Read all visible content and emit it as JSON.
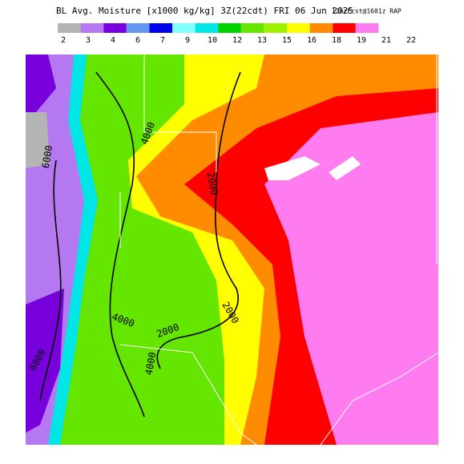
{
  "header": {
    "title": "BL Avg. Moisture [x1000 kg/kg] 3Z(22cdt) FRI 06 Jun 2025",
    "subtitle": "12hrFcst@1601z RAP"
  },
  "legend": {
    "colors": [
      "#b4b4b4",
      "#b478f0",
      "#7800dc",
      "#6496f0",
      "#0000f0",
      "#82ffff",
      "#00e6e6",
      "#00d200",
      "#64e600",
      "#a0f000",
      "#ffff00",
      "#ff8c00",
      "#ff0000",
      "#ff7cf0"
    ],
    "labels": [
      "2",
      "3",
      "4",
      "6",
      "7",
      "9",
      "10",
      "12",
      "13",
      "15",
      "16",
      "18",
      "19",
      "21",
      "22"
    ]
  },
  "contour_labels": [
    "6000",
    "4000",
    "2000",
    "2000",
    "4000",
    "2000",
    "4000",
    "6000"
  ]
}
